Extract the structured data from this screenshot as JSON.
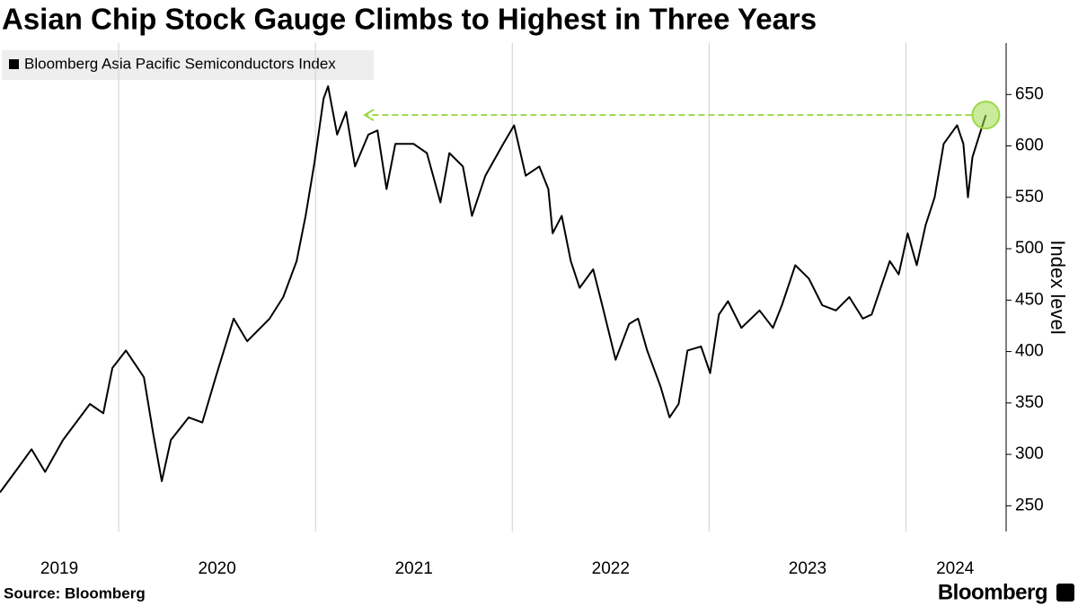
{
  "chart_data": {
    "type": "line",
    "title": "Asian Chip Stock Gauge Climbs to Highest in Three Years",
    "y_axis_label": "Index level",
    "source": "Source: Bloomberg",
    "logo": "Bloomberg",
    "series": [
      {
        "name": "Bloomberg Asia Pacific Semiconductors Index",
        "color": "#000000",
        "x": [
          2019.397,
          2019.489,
          2019.557,
          2019.626,
          2019.717,
          2019.854,
          2019.922,
          2019.968,
          2020.037,
          2020.128,
          2020.174,
          2020.219,
          2020.265,
          2020.356,
          2020.425,
          2020.493,
          2020.584,
          2020.653,
          2020.767,
          2020.836,
          2020.904,
          2020.95,
          2020.995,
          2021.041,
          2021.064,
          2021.11,
          2021.155,
          2021.201,
          2021.269,
          2021.315,
          2021.361,
          2021.406,
          2021.498,
          2021.566,
          2021.635,
          2021.68,
          2021.749,
          2021.795,
          2021.863,
          2021.954,
          2022.009,
          2022.068,
          2022.137,
          2022.183,
          2022.205,
          2022.251,
          2022.297,
          2022.342,
          2022.411,
          2022.457,
          2022.525,
          2022.594,
          2022.639,
          2022.685,
          2022.753,
          2022.799,
          2022.845,
          2022.89,
          2022.959,
          2023.005,
          2023.05,
          2023.096,
          2023.164,
          2023.256,
          2023.324,
          2023.37,
          2023.438,
          2023.507,
          2023.575,
          2023.644,
          2023.712,
          2023.781,
          2023.826,
          2023.872,
          2023.918,
          2023.963,
          2024.009,
          2024.055,
          2024.1,
          2024.146,
          2024.192,
          2024.26,
          2024.292,
          2024.315,
          2024.338,
          2024.374,
          2024.406
        ],
        "values": [
          263,
          287,
          305,
          283,
          314,
          349,
          340,
          384,
          401,
          375,
          322,
          274,
          314,
          336,
          331,
          375,
          432,
          410,
          432,
          453,
          488,
          532,
          584,
          646,
          658,
          611,
          633,
          580,
          611,
          615,
          558,
          602,
          602,
          593,
          545,
          593,
          580,
          532,
          571,
          602,
          620,
          571,
          580,
          558,
          515,
          532,
          488,
          462,
          480,
          445,
          392,
          427,
          432,
          401,
          366,
          336,
          349,
          401,
          405,
          379,
          436,
          449,
          423,
          440,
          423,
          445,
          484,
          471,
          445,
          440,
          453,
          432,
          436,
          462,
          488,
          475,
          515,
          484,
          523,
          550,
          602,
          620,
          602,
          550,
          589,
          611,
          630
        ]
      }
    ],
    "highlight": {
      "x": [
        2021.25,
        2024.406
      ],
      "y": 630,
      "color": "#9ed84a"
    },
    "xlim": [
      2019.397,
      2024.5
    ],
    "xticks": [
      {
        "value": 2019,
        "label": "2019"
      },
      {
        "value": 2020,
        "label": "2020"
      },
      {
        "value": 2021,
        "label": "2021"
      },
      {
        "value": 2022,
        "label": "2022"
      },
      {
        "value": 2023,
        "label": "2023"
      },
      {
        "value": 2024,
        "label": "2024"
      }
    ],
    "ylim": [
      225,
      700
    ],
    "yticks": [
      250,
      300,
      350,
      400,
      450,
      500,
      550,
      600,
      650
    ],
    "xgrid": true
  }
}
